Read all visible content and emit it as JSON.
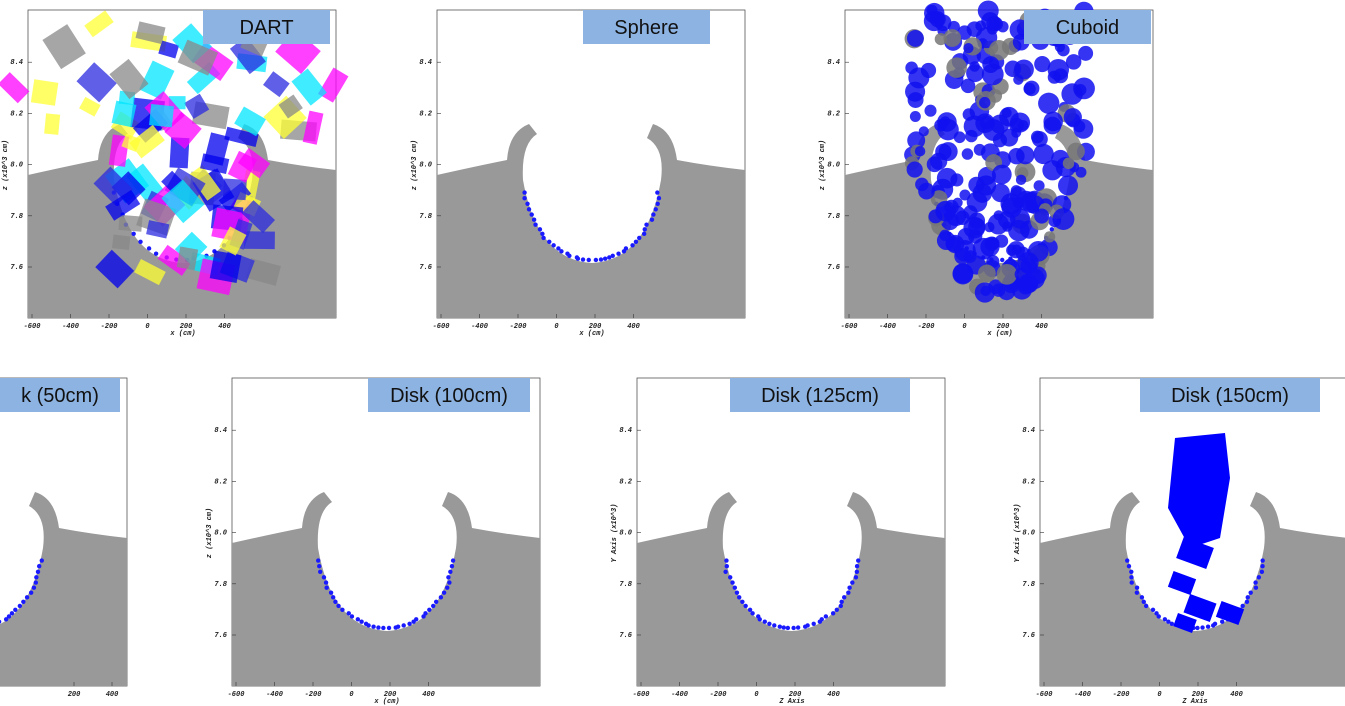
{
  "panels": [
    {
      "label": "DART",
      "xlabel": "x (cm)",
      "ylabel": "z (x10^3 cm)",
      "xticks": [
        "-600",
        "-400",
        "-200",
        "0",
        "200",
        "400"
      ],
      "yticks": [
        "7.6",
        "7.8",
        "8.0",
        "8.2",
        "8.4"
      ]
    },
    {
      "label": "Sphere",
      "xlabel": "x (cm)",
      "ylabel": "z (x10^3 cm)",
      "xticks": [
        "-600",
        "-400",
        "-200",
        "0",
        "200",
        "400"
      ],
      "yticks": [
        "7.6",
        "7.8",
        "8.0",
        "8.2",
        "8.4"
      ]
    },
    {
      "label": "Cuboid",
      "xlabel": "x (cm)",
      "ylabel": "z (x10^3 cm)",
      "xticks": [
        "-600",
        "-400",
        "-200",
        "0",
        "200",
        "400"
      ],
      "yticks": [
        "7.6",
        "7.8",
        "8.0",
        "8.2",
        "8.4"
      ]
    },
    {
      "label": "k (50cm)",
      "xticks": [
        "200",
        "400"
      ]
    },
    {
      "label": "Disk (100cm)",
      "xlabel": "x (cm)",
      "ylabel": "z (x10^3 cm)",
      "xticks": [
        "-600",
        "-400",
        "-200",
        "0",
        "200",
        "400"
      ],
      "yticks": [
        "7.6",
        "7.8",
        "8.0",
        "8.2",
        "8.4"
      ]
    },
    {
      "label": "Disk (125cm)",
      "xlabel": "Z Axis",
      "ylabel": "Y Axis (x10^3)",
      "xticks": [
        "-600",
        "-400",
        "-200",
        "0",
        "200",
        "400"
      ],
      "yticks": [
        "7.6",
        "7.8",
        "8.0",
        "8.2",
        "8.4"
      ]
    },
    {
      "label": "Disk (150cm)",
      "xlabel": "Z Axis",
      "ylabel": "Y Axis (x10^3)",
      "xticks": [
        "-600",
        "-400",
        "-200",
        "0",
        "200",
        "400"
      ],
      "yticks": [
        "7.6",
        "7.8",
        "8.0",
        "8.2",
        "8.4"
      ]
    }
  ]
}
